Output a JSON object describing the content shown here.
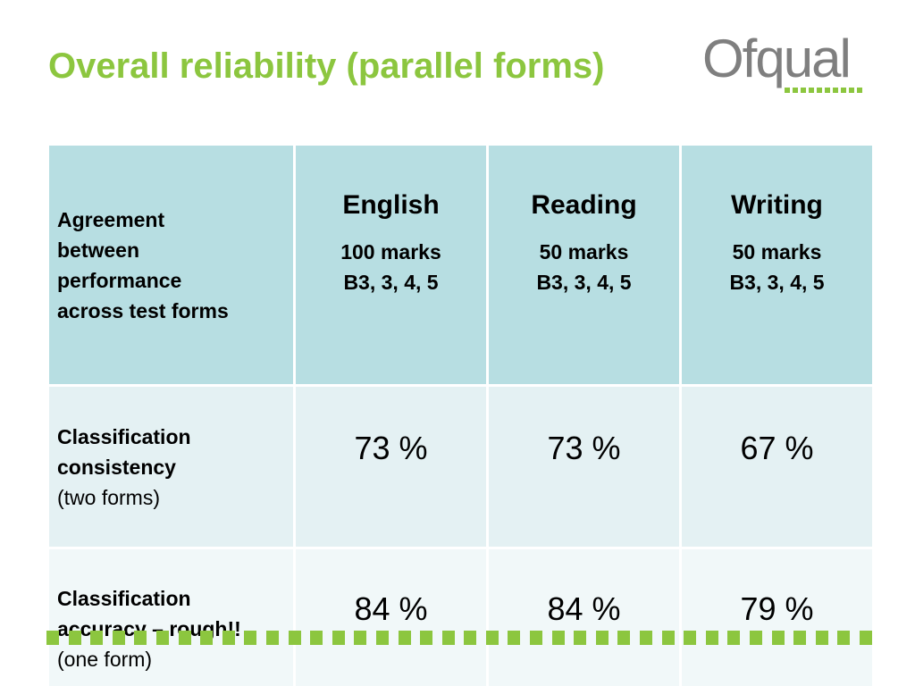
{
  "title": "Overall reliability (parallel forms)",
  "logo": {
    "text": "Ofqual",
    "accent_color": "#8cc63f",
    "text_color": "#7f7f7f"
  },
  "colors": {
    "title": "#8cc63f",
    "header_bg": "#b7dee2",
    "row1_bg": "#e4f1f3",
    "row2_bg": "#f1f8f9",
    "dots": "#8cc63f"
  },
  "table": {
    "corner_lines": [
      "Agreement",
      "between",
      "performance",
      "across test forms"
    ],
    "columns": [
      {
        "name": "English",
        "marks": "100 marks",
        "grades": "B3, 3, 4, 5"
      },
      {
        "name": "Reading",
        "marks": "50 marks",
        "grades": "B3, 3, 4, 5"
      },
      {
        "name": "Writing",
        "marks": "50 marks",
        "grades": "B3, 3, 4, 5"
      }
    ],
    "rows": [
      {
        "label_bold_lines": [
          "Classification",
          "consistency"
        ],
        "label_normal": "(two forms)",
        "values": [
          "73 %",
          "73 %",
          "67 %"
        ]
      },
      {
        "label_bold_lines": [
          "Classification",
          "accuracy – rough!!"
        ],
        "label_normal": "(one form)",
        "values": [
          "84 %",
          "84 %",
          "79 %"
        ]
      }
    ]
  }
}
